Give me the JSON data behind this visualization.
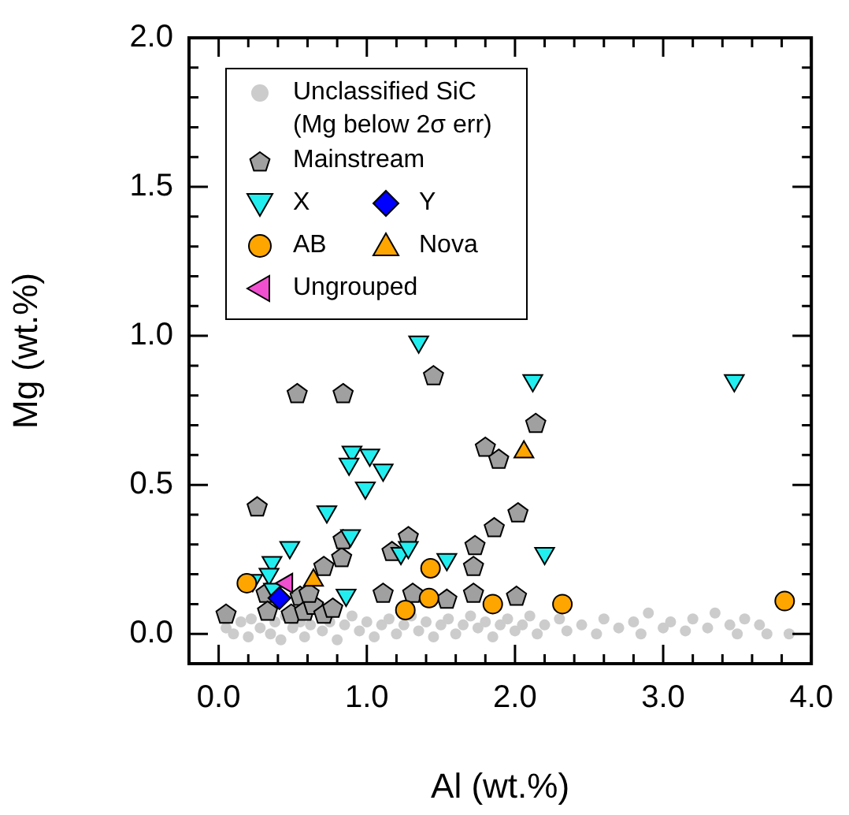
{
  "chart_data": {
    "type": "scatter",
    "xlabel": "Al (wt.%)",
    "ylabel": "Mg (wt.%)",
    "xlim": [
      -0.2,
      4.0
    ],
    "ylim": [
      -0.1,
      2.0
    ],
    "xticks": [
      {
        "value": 0,
        "label": "0.0"
      },
      {
        "value": 0.2,
        "label": null
      },
      {
        "value": 0.4,
        "label": null
      },
      {
        "value": 0.6,
        "label": null
      },
      {
        "value": 0.8,
        "label": null
      },
      {
        "value": 1,
        "label": "1.0"
      },
      {
        "value": 1.2,
        "label": null
      },
      {
        "value": 1.4,
        "label": null
      },
      {
        "value": 1.6,
        "label": null
      },
      {
        "value": 1.8,
        "label": null
      },
      {
        "value": 2,
        "label": "2.0"
      },
      {
        "value": 2.2,
        "label": null
      },
      {
        "value": 2.4,
        "label": null
      },
      {
        "value": 2.6,
        "label": null
      },
      {
        "value": 2.8,
        "label": null
      },
      {
        "value": 3,
        "label": "3.0"
      },
      {
        "value": 3.2,
        "label": null
      },
      {
        "value": 3.4,
        "label": null
      },
      {
        "value": 3.6,
        "label": null
      },
      {
        "value": 3.8,
        "label": null
      },
      {
        "value": 4,
        "label": "4.0"
      }
    ],
    "yticks": [
      {
        "value": 0,
        "label": "0.0"
      },
      {
        "value": 0.1,
        "label": null
      },
      {
        "value": 0.2,
        "label": null
      },
      {
        "value": 0.3,
        "label": null
      },
      {
        "value": 0.4,
        "label": null
      },
      {
        "value": 0.5,
        "label": "0.5"
      },
      {
        "value": 0.6,
        "label": null
      },
      {
        "value": 0.7,
        "label": null
      },
      {
        "value": 0.8,
        "label": null
      },
      {
        "value": 0.9,
        "label": null
      },
      {
        "value": 1,
        "label": "1.0"
      },
      {
        "value": 1.1,
        "label": null
      },
      {
        "value": 1.2,
        "label": null
      },
      {
        "value": 1.3,
        "label": null
      },
      {
        "value": 1.4,
        "label": null
      },
      {
        "value": 1.5,
        "label": "1.5"
      },
      {
        "value": 1.6,
        "label": null
      },
      {
        "value": 1.7,
        "label": null
      },
      {
        "value": 1.8,
        "label": null
      },
      {
        "value": 1.9,
        "label": null
      },
      {
        "value": 2,
        "label": "2.0"
      }
    ],
    "grid": false,
    "legend": "top left",
    "series": [
      {
        "name": "Unclassified SiC\n(Mg below 2σ err)",
        "color": "#cccccc",
        "marker": "dot",
        "x": [
          0.05,
          0.1,
          0.15,
          0.2,
          0.22,
          0.28,
          0.35,
          0.38,
          0.42,
          0.45,
          0.5,
          0.55,
          0.58,
          0.62,
          0.7,
          0.75,
          0.8,
          0.85,
          0.9,
          0.95,
          1.0,
          1.05,
          1.1,
          1.15,
          1.2,
          1.25,
          1.3,
          1.35,
          1.4,
          1.45,
          1.5,
          1.55,
          1.6,
          1.65,
          1.7,
          1.75,
          1.8,
          1.85,
          1.9,
          1.95,
          2.0,
          2.05,
          2.1,
          2.15,
          2.2,
          2.3,
          2.35,
          2.45,
          2.55,
          2.6,
          2.7,
          2.8,
          2.85,
          2.9,
          3.0,
          3.05,
          3.15,
          3.2,
          3.3,
          3.35,
          3.45,
          3.5,
          3.55,
          3.65,
          3.7,
          3.85
        ],
        "values": [
          0.02,
          0.0,
          0.04,
          -0.01,
          0.05,
          0.02,
          0.0,
          0.04,
          -0.02,
          0.06,
          0.02,
          0.04,
          -0.01,
          0.03,
          0.01,
          0.04,
          -0.02,
          0.03,
          0.06,
          0.01,
          0.04,
          -0.01,
          0.03,
          0.05,
          0.0,
          0.03,
          0.06,
          0.01,
          0.04,
          -0.01,
          0.03,
          0.05,
          0.0,
          0.03,
          0.06,
          0.02,
          0.04,
          -0.01,
          0.03,
          0.05,
          0.01,
          0.03,
          0.06,
          0.0,
          0.03,
          0.05,
          0.01,
          0.03,
          0.0,
          0.05,
          0.02,
          0.04,
          0.0,
          0.07,
          0.02,
          0.04,
          0.01,
          0.05,
          0.02,
          0.07,
          0.03,
          0.0,
          0.05,
          0.03,
          0.0,
          0.0
        ]
      },
      {
        "name": "Mainstream",
        "color": "#a0a0a0",
        "x": [
          0.53,
          0.84,
          1.45,
          0.26,
          1.8,
          1.89,
          1.86,
          2.02,
          1.73,
          1.72,
          1.72,
          2.01,
          2.14,
          1.28,
          1.17,
          0.83,
          0.84,
          0.71,
          1.11,
          1.31,
          1.54,
          0.05,
          0.32,
          0.33,
          0.49,
          0.55,
          0.58,
          0.64,
          0.71,
          0.77,
          0.61
        ],
        "values": [
          0.81,
          0.81,
          0.87,
          0.43,
          0.63,
          0.59,
          0.36,
          0.41,
          0.3,
          0.23,
          0.14,
          0.13,
          0.71,
          0.33,
          0.28,
          0.26,
          0.32,
          0.23,
          0.14,
          0.14,
          0.12,
          0.07,
          0.14,
          0.08,
          0.07,
          0.13,
          0.08,
          0.1,
          0.07,
          0.09,
          0.14
        ]
      },
      {
        "name": "X",
        "color": "#22eef0",
        "marker": "triangle-down",
        "x": [
          1.35,
          2.12,
          3.48,
          2.2,
          0.9,
          0.88,
          1.02,
          1.11,
          0.99,
          0.73,
          0.89,
          0.48,
          1.23,
          1.28,
          1.54,
          0.36,
          0.23,
          0.34,
          0.86,
          0.37
        ],
        "values": [
          0.98,
          0.85,
          0.85,
          0.27,
          0.61,
          0.57,
          0.6,
          0.55,
          0.49,
          0.41,
          0.33,
          0.29,
          0.27,
          0.29,
          0.25,
          0.24,
          0.18,
          0.2,
          0.13,
          0.15
        ]
      },
      {
        "name": "Y",
        "color": "#0000ff",
        "marker": "diamond",
        "x": [
          0.41
        ],
        "values": [
          0.12
        ]
      },
      {
        "name": "AB",
        "color": "#ffa500",
        "marker": "circle",
        "x": [
          0.19,
          1.43,
          1.42,
          1.26,
          1.85,
          2.32,
          3.82
        ],
        "values": [
          0.17,
          0.22,
          0.12,
          0.08,
          0.1,
          0.1,
          0.11
        ]
      },
      {
        "name": "Nova",
        "color": "#ffa500",
        "marker": "triangle",
        "x": [
          0.64,
          2.06
        ],
        "values": [
          0.18,
          0.61
        ]
      },
      {
        "name": "Ungrouped",
        "color": "#f050d0",
        "marker": "triangle-left",
        "x": [
          0.46
        ],
        "values": [
          0.17
        ]
      }
    ]
  }
}
